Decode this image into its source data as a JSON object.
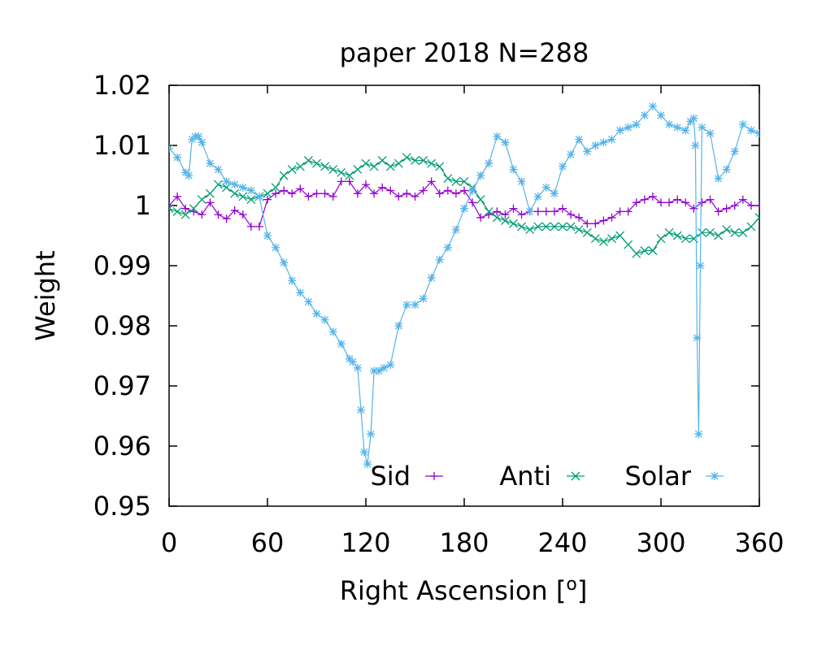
{
  "chart_data": {
    "type": "line",
    "title": "paper 2018 N=288",
    "xlabel": "Right Ascension [o]",
    "ylabel": "Weight",
    "xlim": [
      0,
      360
    ],
    "ylim": [
      0.95,
      1.02
    ],
    "xticks": [
      0,
      60,
      120,
      180,
      240,
      300,
      360
    ],
    "xtick_labels": [
      "0",
      "60",
      "120",
      "180",
      "240",
      "300",
      "360"
    ],
    "yticks": [
      0.95,
      0.96,
      0.97,
      0.98,
      0.99,
      1.0,
      1.01,
      1.02
    ],
    "ytick_labels": [
      "0.95",
      "0.96",
      "0.97",
      "0.98",
      "0.99",
      "1",
      "1.01",
      "1.02"
    ],
    "grid": false,
    "legend_position": "bottom-right",
    "series": [
      {
        "name": "Sid",
        "color": "#9400d3",
        "marker": "plus",
        "x": [
          0,
          5,
          10,
          15,
          20,
          25,
          30,
          35,
          40,
          45,
          50,
          55,
          60,
          65,
          70,
          75,
          80,
          85,
          90,
          95,
          100,
          105,
          110,
          115,
          120,
          125,
          130,
          135,
          140,
          145,
          150,
          155,
          160,
          165,
          170,
          175,
          180,
          185,
          190,
          195,
          200,
          205,
          210,
          215,
          220,
          225,
          230,
          235,
          240,
          245,
          250,
          255,
          260,
          265,
          270,
          275,
          280,
          285,
          290,
          295,
          300,
          305,
          310,
          315,
          320,
          325,
          330,
          335,
          340,
          345,
          350,
          355,
          360
        ],
        "y": [
          1.0,
          1.0015,
          0.9995,
          0.999,
          0.9985,
          1.0005,
          0.9985,
          0.9978,
          0.9992,
          0.9985,
          0.9965,
          0.9965,
          1.001,
          1.002,
          1.0025,
          1.002,
          1.0028,
          1.0015,
          1.002,
          1.002,
          1.0015,
          1.004,
          1.004,
          1.002,
          1.0035,
          1.002,
          1.003,
          1.0025,
          1.0015,
          1.002,
          1.0015,
          1.0025,
          1.004,
          1.002,
          1.0025,
          1.002,
          1.0025,
          1.0005,
          0.998,
          0.9985,
          0.999,
          0.9985,
          0.9995,
          0.9985,
          0.999,
          0.999,
          0.999,
          0.999,
          0.9995,
          0.9985,
          0.998,
          0.997,
          0.997,
          0.9975,
          0.998,
          0.999,
          0.999,
          1.0005,
          1.001,
          1.0015,
          1.0005,
          1.0005,
          1.001,
          1.0005,
          0.9995,
          1.0005,
          1.001,
          0.999,
          0.9995,
          1.0,
          1.001,
          1.0,
          1.0
        ]
      },
      {
        "name": "Anti",
        "color": "#009e73",
        "marker": "cross",
        "x": [
          0,
          5,
          10,
          15,
          20,
          25,
          30,
          35,
          40,
          45,
          50,
          55,
          60,
          65,
          70,
          75,
          80,
          85,
          90,
          95,
          100,
          105,
          110,
          115,
          120,
          125,
          130,
          135,
          140,
          145,
          150,
          155,
          160,
          165,
          170,
          175,
          180,
          185,
          190,
          195,
          200,
          205,
          210,
          215,
          220,
          225,
          230,
          235,
          240,
          245,
          250,
          255,
          260,
          265,
          270,
          275,
          280,
          285,
          290,
          295,
          300,
          305,
          310,
          315,
          320,
          325,
          330,
          335,
          340,
          345,
          350,
          355,
          360
        ],
        "y": [
          0.9995,
          0.999,
          0.9985,
          0.9995,
          1.001,
          1.002,
          1.0035,
          1.003,
          1.002,
          1.0015,
          1.001,
          1.0015,
          1.002,
          1.003,
          1.005,
          1.006,
          1.0065,
          1.0075,
          1.007,
          1.0065,
          1.006,
          1.0055,
          1.005,
          1.006,
          1.007,
          1.0065,
          1.0075,
          1.0065,
          1.007,
          1.008,
          1.0075,
          1.0075,
          1.007,
          1.0065,
          1.0045,
          1.004,
          1.004,
          1.003,
          1.001,
          0.999,
          0.998,
          0.9975,
          0.997,
          0.9965,
          0.996,
          0.9965,
          0.9965,
          0.9965,
          0.9965,
          0.9965,
          0.996,
          0.9955,
          0.9945,
          0.994,
          0.9945,
          0.995,
          0.9935,
          0.992,
          0.9925,
          0.9925,
          0.9945,
          0.9955,
          0.995,
          0.9945,
          0.9945,
          0.9955,
          0.9955,
          0.995,
          0.996,
          0.9955,
          0.9955,
          0.9965,
          0.998
        ]
      },
      {
        "name": "Solar",
        "color": "#56b4e9",
        "marker": "star",
        "x": [
          0,
          5,
          10,
          12,
          14,
          16,
          18,
          20,
          25,
          30,
          35,
          40,
          45,
          50,
          55,
          60,
          65,
          70,
          75,
          80,
          85,
          90,
          95,
          100,
          105,
          110,
          112,
          115,
          117,
          119,
          121,
          123,
          125,
          128,
          131,
          135,
          140,
          145,
          150,
          155,
          160,
          165,
          170,
          175,
          180,
          185,
          190,
          195,
          200,
          205,
          210,
          215,
          220,
          225,
          230,
          235,
          240,
          245,
          250,
          255,
          260,
          265,
          270,
          275,
          280,
          285,
          290,
          295,
          300,
          305,
          310,
          315,
          318,
          320,
          321,
          322,
          323,
          324,
          325,
          330,
          335,
          340,
          345,
          350,
          355,
          360
        ],
        "y": [
          1.0095,
          1.008,
          1.0055,
          1.005,
          1.011,
          1.0115,
          1.0115,
          1.0105,
          1.007,
          1.006,
          1.004,
          1.0035,
          1.003,
          1.0025,
          1.0015,
          0.995,
          0.993,
          0.9905,
          0.9875,
          0.9855,
          0.984,
          0.982,
          0.981,
          0.979,
          0.977,
          0.9745,
          0.974,
          0.973,
          0.966,
          0.959,
          0.957,
          0.962,
          0.9725,
          0.9725,
          0.973,
          0.9735,
          0.98,
          0.9835,
          0.9835,
          0.9845,
          0.988,
          0.991,
          0.993,
          0.996,
          0.9995,
          1.0025,
          1.005,
          1.007,
          1.0115,
          1.0105,
          1.006,
          1.004,
          0.999,
          1.0015,
          1.003,
          1.002,
          1.0065,
          1.0085,
          1.011,
          1.009,
          1.01,
          1.0105,
          1.011,
          1.0125,
          1.013,
          1.0135,
          1.015,
          1.0165,
          1.015,
          1.0135,
          1.013,
          1.0125,
          1.014,
          1.0145,
          1.01,
          0.978,
          0.962,
          0.99,
          1.013,
          1.012,
          1.0045,
          1.006,
          1.009,
          1.0135,
          1.0125,
          1.012
        ]
      }
    ]
  }
}
